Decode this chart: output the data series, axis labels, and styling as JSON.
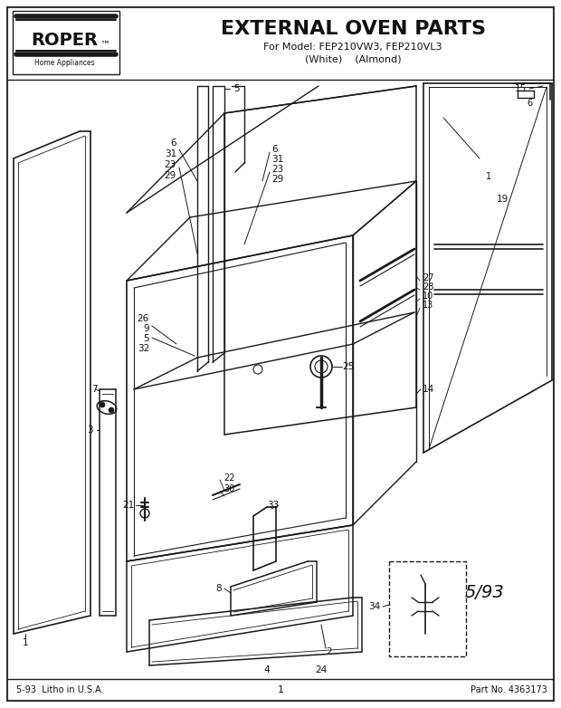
{
  "title": "EXTERNAL OVEN PARTS",
  "subtitle_line1": "For Model: FEP210VW3, FEP210VL3",
  "subtitle_line2": "(White)    (Almond)",
  "footer_left": "5-93  Litho in U.S.A.",
  "footer_center": "1",
  "footer_right": "Part No. 4363173",
  "date_stamp": "5/93",
  "bg_color": "#ffffff",
  "line_color": "#1a1a1a",
  "text_color": "#111111",
  "fig_width": 6.2,
  "fig_height": 7.82,
  "dpi": 100
}
